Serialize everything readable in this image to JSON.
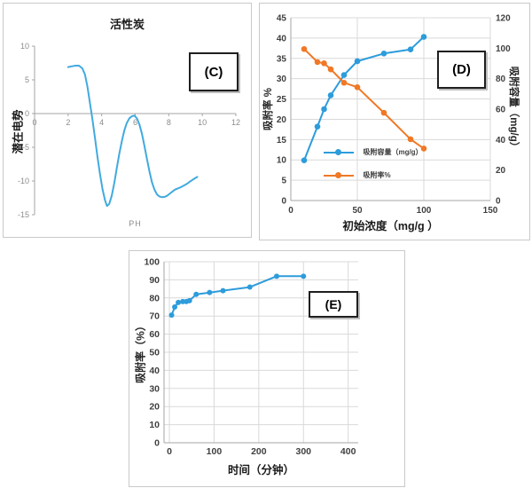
{
  "figure": {
    "background": "#ffffff",
    "grid_color": "#d9d9d9",
    "axis_color": "#a6a6a6"
  },
  "chart_data": [
    {
      "id": "C",
      "type": "line",
      "panel_label": "(C)",
      "title": "活性炭",
      "xlabel": "PH",
      "ylabel": "潜在电势",
      "xlim": [
        0,
        12
      ],
      "ylim": [
        -15,
        10
      ],
      "x_ticks": [
        0,
        2,
        4,
        6,
        8,
        10,
        12
      ],
      "y_ticks": [
        10,
        5,
        0,
        -5,
        -10,
        -15
      ],
      "grid": false,
      "legend": "none",
      "line_color": "#41aadf",
      "curve_points": [
        [
          2.0,
          6.9
        ],
        [
          2.2,
          7.0
        ],
        [
          2.45,
          7.1
        ],
        [
          2.65,
          7.1
        ],
        [
          2.85,
          6.7
        ],
        [
          3.0,
          5.8
        ],
        [
          3.15,
          4.0
        ],
        [
          3.3,
          1.6
        ],
        [
          3.45,
          -0.9
        ],
        [
          3.6,
          -3.6
        ],
        [
          3.75,
          -6.4
        ],
        [
          3.9,
          -9.0
        ],
        [
          4.05,
          -11.2
        ],
        [
          4.2,
          -12.9
        ],
        [
          4.32,
          -13.7
        ],
        [
          4.45,
          -13.4
        ],
        [
          4.6,
          -12.2
        ],
        [
          4.75,
          -10.3
        ],
        [
          4.9,
          -8.1
        ],
        [
          5.05,
          -6.0
        ],
        [
          5.2,
          -4.1
        ],
        [
          5.35,
          -2.5
        ],
        [
          5.5,
          -1.4
        ],
        [
          5.65,
          -0.7
        ],
        [
          5.8,
          -0.4
        ],
        [
          5.95,
          -0.3
        ],
        [
          6.1,
          -0.7
        ],
        [
          6.25,
          -1.6
        ],
        [
          6.4,
          -3.0
        ],
        [
          6.55,
          -4.8
        ],
        [
          6.7,
          -6.7
        ],
        [
          6.85,
          -8.6
        ],
        [
          7.0,
          -10.2
        ],
        [
          7.15,
          -11.3
        ],
        [
          7.3,
          -12.0
        ],
        [
          7.45,
          -12.3
        ],
        [
          7.6,
          -12.4
        ],
        [
          7.75,
          -12.35
        ],
        [
          7.9,
          -12.2
        ],
        [
          8.05,
          -11.9
        ],
        [
          8.2,
          -11.6
        ],
        [
          8.35,
          -11.3
        ],
        [
          8.5,
          -11.15
        ],
        [
          8.65,
          -11.0
        ],
        [
          8.8,
          -10.8
        ],
        [
          8.95,
          -10.6
        ],
        [
          9.1,
          -10.4
        ],
        [
          9.25,
          -10.1
        ],
        [
          9.4,
          -9.85
        ],
        [
          9.55,
          -9.6
        ],
        [
          9.7,
          -9.4
        ]
      ]
    },
    {
      "id": "D",
      "type": "line",
      "panel_label": "(D)",
      "xlabel": "初始浓度（mg/g ）",
      "ylabel_left": "吸附率 %",
      "ylabel_right": "吸附容量（mg/g）",
      "xlim": [
        0,
        150
      ],
      "ylim_left": [
        0,
        45
      ],
      "ylim_right": [
        0,
        120
      ],
      "x_ticks": [
        0,
        50,
        100,
        150
      ],
      "y_ticks_left": [
        0,
        5,
        10,
        15,
        20,
        25,
        30,
        35,
        40,
        45
      ],
      "y_ticks_right": [
        0,
        20,
        40,
        60,
        80,
        100,
        120
      ],
      "grid": true,
      "legend_position": "inside-lower-left",
      "x": [
        10,
        20,
        25,
        30,
        40,
        50,
        70,
        90,
        100
      ],
      "series": [
        {
          "name": "吸附容量（mg/g）",
          "color": "#2d9cdb",
          "plotted_on_left_scale": [
            9.9,
            18.2,
            22.5,
            25.9,
            30.9,
            34.3,
            36.2,
            37.2,
            40.3
          ]
        },
        {
          "name": "吸附率%",
          "color": "#f07826",
          "plotted_on_left_scale": [
            37.3,
            34.1,
            33.8,
            32.3,
            29.0,
            27.9,
            21.6,
            15.1,
            12.8
          ],
          "right_axis_equivalent": [
            99.5,
            91,
            90,
            86,
            77.3,
            74.4,
            57.6,
            40.3,
            34.1
          ]
        }
      ]
    },
    {
      "id": "E",
      "type": "line",
      "panel_label": "(E)",
      "xlabel": "时间（分钟）",
      "ylabel": "吸附率（%）",
      "xlim": [
        0,
        400
      ],
      "ylim": [
        0,
        100
      ],
      "x_ticks": [
        0,
        100,
        200,
        300,
        400
      ],
      "y_ticks": [
        100,
        90,
        80,
        70,
        60,
        50,
        40,
        30,
        20,
        10,
        0
      ],
      "grid": true,
      "legend": "none",
      "series": [
        {
          "name": "吸附率（%）",
          "color": "#2d9cdb",
          "x": [
            5,
            12,
            20,
            30,
            38,
            45,
            60,
            90,
            120,
            180,
            240,
            300
          ],
          "values": [
            70.5,
            75,
            77.5,
            78,
            78,
            78.5,
            82,
            83,
            84,
            86,
            92,
            92
          ]
        }
      ]
    }
  ]
}
